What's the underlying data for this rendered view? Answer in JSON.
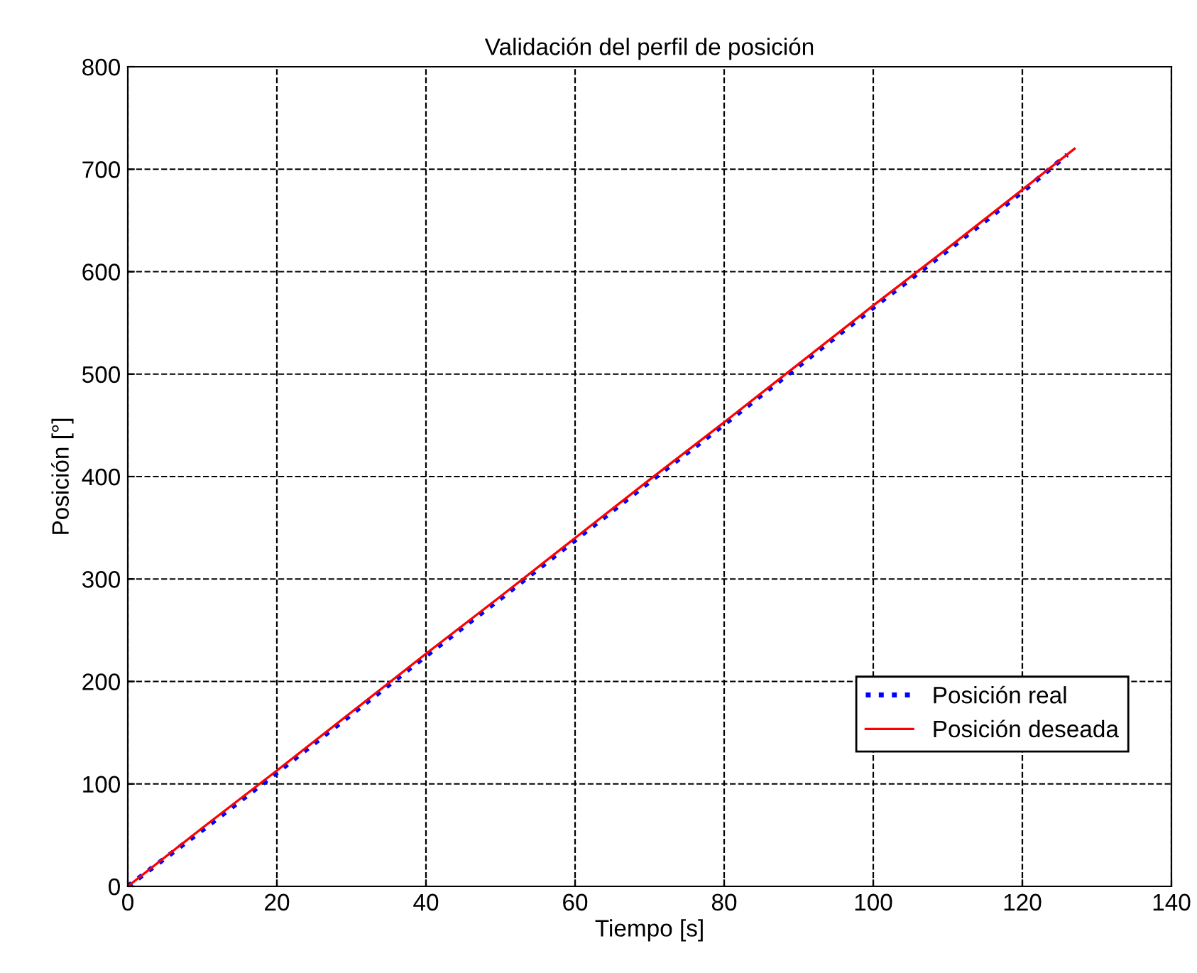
{
  "chart_data": {
    "type": "line",
    "title": "Validación del perfil de posición",
    "xlabel": "Tiempo [s]",
    "ylabel": "Posición [°]",
    "xlim": [
      0,
      140
    ],
    "xticks": [
      0,
      20,
      40,
      60,
      80,
      100,
      120,
      140
    ],
    "ylim": [
      0,
      800
    ],
    "yticks": [
      0,
      100,
      200,
      300,
      400,
      500,
      600,
      700,
      800
    ],
    "grid": true,
    "legend": "lower right",
    "series": [
      {
        "name": "Posición real",
        "color": "#0000ff",
        "line_style": "dotted",
        "x": [
          0,
          10,
          20,
          30,
          40,
          50,
          60,
          70,
          80,
          90,
          100,
          110,
          120,
          126
        ],
        "values": [
          0,
          55,
          111,
          168,
          225,
          281,
          338,
          395,
          451,
          508,
          565,
          621,
          678,
          714
        ]
      },
      {
        "name": "Posición deseada",
        "color": "#ff0000",
        "line_style": "solid",
        "x": [
          0,
          10,
          20,
          30,
          40,
          50,
          60,
          70,
          80,
          90,
          100,
          110,
          120,
          127
        ],
        "values": [
          0,
          57,
          113,
          170,
          227,
          283,
          340,
          397,
          453,
          510,
          567,
          623,
          680,
          720
        ]
      }
    ]
  }
}
